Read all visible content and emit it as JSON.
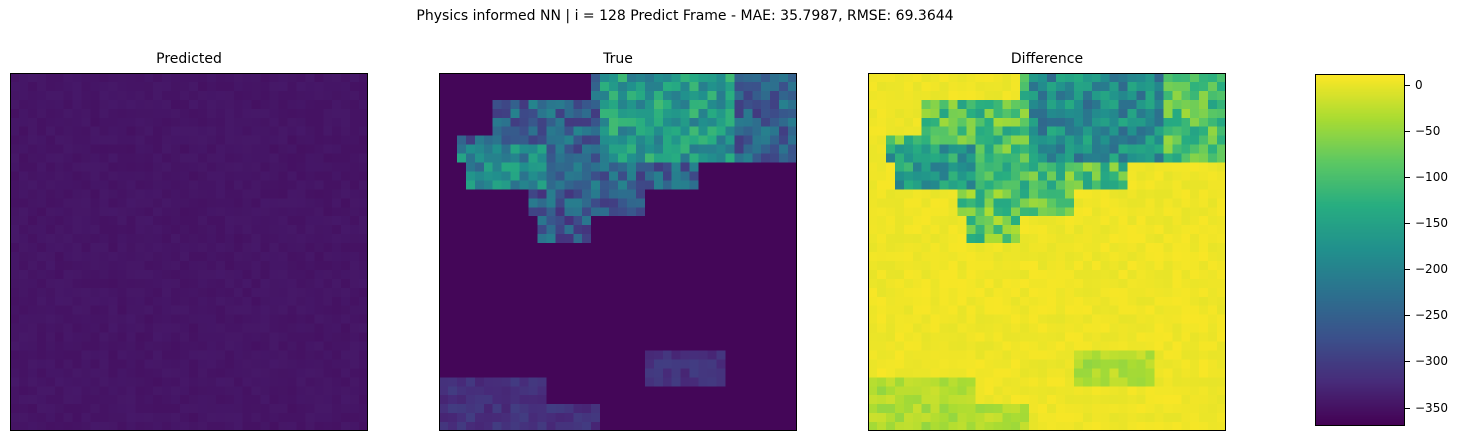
{
  "chart_data": [
    {
      "type": "heatmap",
      "suptitle": "Physics informed NN | i = 128 Predict Frame - MAE: 35.7987, RMSE: 69.3644",
      "panels": [
        {
          "id": "predicted",
          "title": "Predicted",
          "description_of_values": "nearly uniform, close to colour minimum"
        },
        {
          "id": "true",
          "title": "True",
          "description_of_values": "high-value patches in upper region, faint patch lower-left"
        },
        {
          "id": "difference",
          "title": "Difference",
          "description_of_values": "mostly near 0 (yellow), strongly negative where True has patches"
        }
      ],
      "grid_size": [
        40,
        40
      ],
      "colormap": "viridis",
      "colorbar": {
        "vmin": -370,
        "vmax": 12,
        "ticks": [
          0,
          -50,
          -100,
          -150,
          -200,
          -250,
          -300,
          -350
        ],
        "tick_labels": [
          "0",
          "−50",
          "−100",
          "−150",
          "−200",
          "−250",
          "−300",
          "−350"
        ]
      },
      "axes_ticks": false
    }
  ]
}
